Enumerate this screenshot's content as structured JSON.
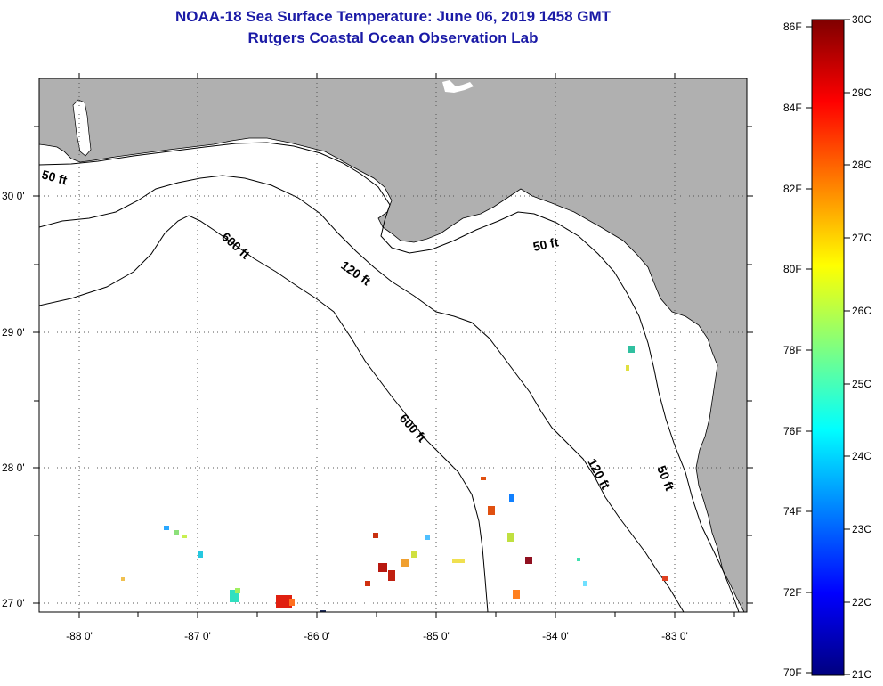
{
  "title": "NOAA-18 Sea Surface Temperature:  June 06, 2019 1458 GMT",
  "subtitle": "Rutgers Coastal Ocean Observation Lab",
  "map": {
    "lon_ticks": [
      "-88 0'",
      "-87 0'",
      "-86 0'",
      "-85 0'",
      "-84 0'",
      "-83 0'"
    ],
    "lat_ticks": [
      "30 0'",
      "29 0'",
      "28 0'",
      "27 0'"
    ],
    "contour_labels": {
      "c50_west": "50 ft",
      "c50_mid": "50 ft",
      "c50_south": "50 ft",
      "c600_north": "600 ft",
      "c600_south": "600 ft",
      "c120_north": "120 ft",
      "c120_south": "120 ft"
    },
    "land_color": "#b0b0b0",
    "ocean_color": "#ffffff"
  },
  "colorbar": {
    "fahrenheit_ticks": [
      "86F",
      "84F",
      "82F",
      "80F",
      "78F",
      "76F",
      "74F",
      "72F",
      "70F"
    ],
    "celsius_ticks": [
      "30C",
      "29C",
      "28C",
      "27C",
      "26C",
      "25C",
      "24C",
      "23C",
      "22C",
      "21C"
    ],
    "colormap": "jet"
  }
}
